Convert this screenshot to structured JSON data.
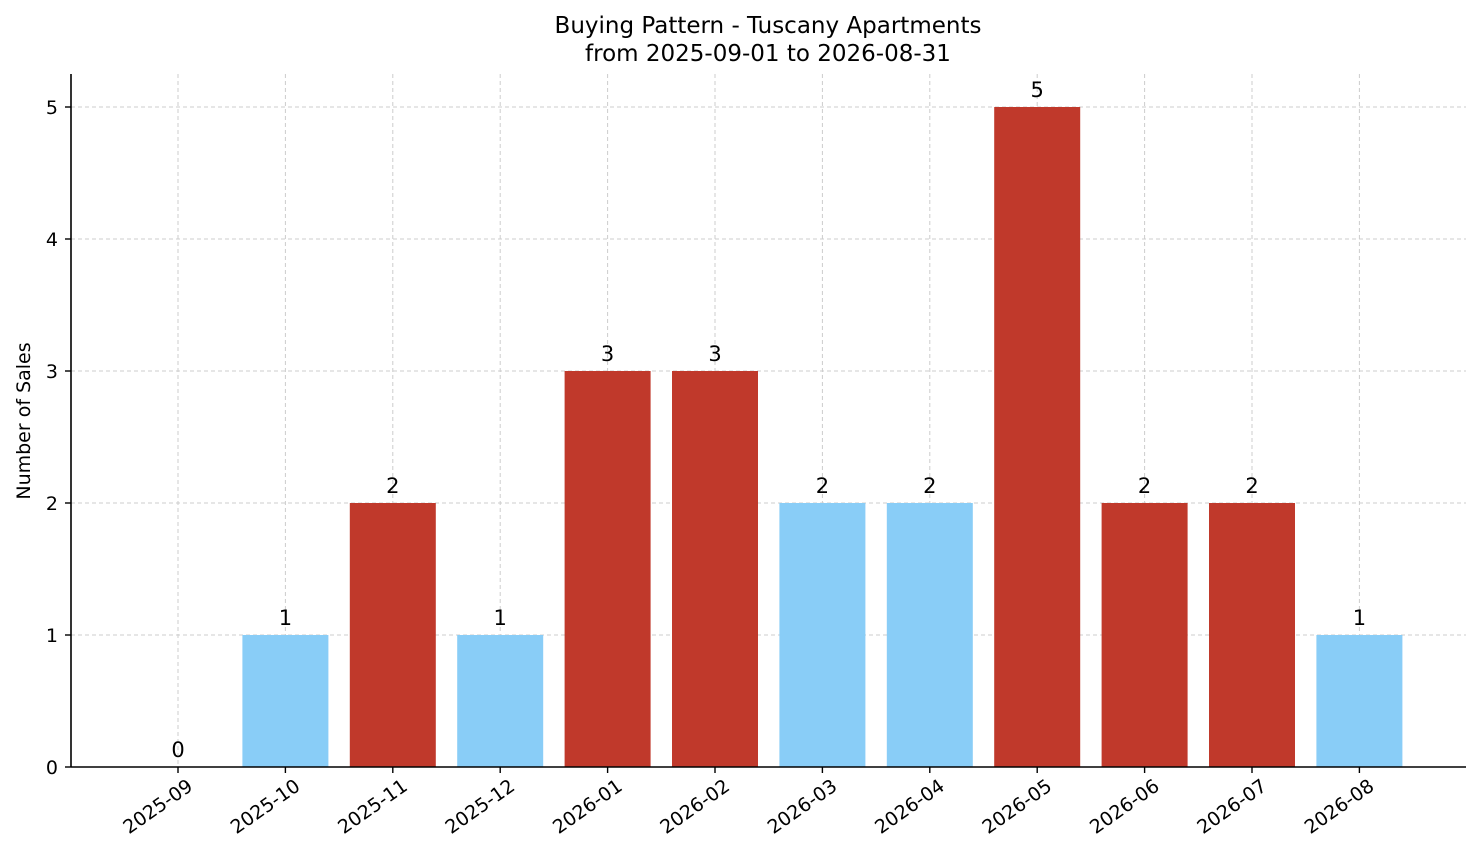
{
  "chart_data": {
    "type": "bar",
    "title": "Buying Pattern - Tuscany Apartments",
    "subtitle": "from 2025-09-01 to 2026-08-31",
    "xlabel": "",
    "ylabel": "Number of Sales",
    "categories": [
      "2025-09",
      "2025-10",
      "2025-11",
      "2025-12",
      "2026-01",
      "2026-02",
      "2026-03",
      "2026-04",
      "2026-05",
      "2026-06",
      "2026-07",
      "2026-08"
    ],
    "values": [
      0,
      1,
      2,
      1,
      3,
      3,
      2,
      2,
      5,
      2,
      2,
      1
    ],
    "bar_colors": [
      "#89cdf7",
      "#89cdf7",
      "#c0392b",
      "#89cdf7",
      "#c0392b",
      "#c0392b",
      "#89cdf7",
      "#89cdf7",
      "#c0392b",
      "#c0392b",
      "#c0392b",
      "#89cdf7"
    ],
    "yticks": [
      0,
      1,
      2,
      3,
      4,
      5
    ],
    "ylim": [
      0,
      5.25
    ],
    "grid": true,
    "legend": "none"
  }
}
